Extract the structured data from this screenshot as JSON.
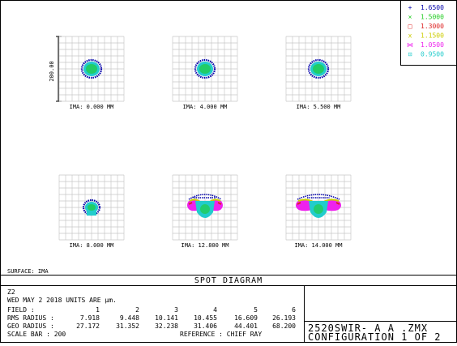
{
  "legend": [
    {
      "marker": "+",
      "label": "1.6500",
      "color": "#0000aa"
    },
    {
      "marker": "×",
      "label": "1.5000",
      "color": "#22cc22"
    },
    {
      "marker": "□",
      "label": "1.3000",
      "color": "#dd2222"
    },
    {
      "marker": "x",
      "label": "1.1500",
      "color": "#cccc00"
    },
    {
      "marker": "⋈",
      "label": "1.0500",
      "color": "#ee22ee"
    },
    {
      "marker": "⊡",
      "label": "0.9500",
      "color": "#22cccc"
    }
  ],
  "scale_bar_label": "200.00",
  "fields": [
    {
      "label": "IMA: 0.000 MM",
      "shape": "round"
    },
    {
      "label": "IMA: 4.000 MM",
      "shape": "round"
    },
    {
      "label": "IMA: 5.500 MM",
      "shape": "round"
    },
    {
      "label": "IMA: 8.000 MM",
      "shape": "round-small"
    },
    {
      "label": "IMA: 12.800 MM",
      "shape": "bowtie"
    },
    {
      "label": "IMA: 14.000 MM",
      "shape": "bowtie-wide"
    }
  ],
  "surface_label": "SURFACE: IMA",
  "title": "SPOT DIAGRAM",
  "info": {
    "line1": "Z2",
    "line2": "WED MAY 2 2018  UNITS ARE µm.",
    "field_label": "FIELD         :",
    "field_values": [
      "1",
      "2",
      "3",
      "4",
      "5",
      "6"
    ],
    "rms_label": "RMS RADIUS :",
    "rms_values": [
      "7.918",
      "9.448",
      "10.141",
      "10.455",
      "16.609",
      "26.193"
    ],
    "geo_label": "GEO RADIUS :",
    "geo_values": [
      "27.172",
      "31.352",
      "32.238",
      "31.406",
      "44.401",
      "68.200"
    ],
    "scale_bar_text": "SCALE BAR   :      200",
    "reference_text": "REFERENCE   : CHIEF RAY"
  },
  "file_box": {
    "line1": "2520SWIR- A  A  .ZMX",
    "line2": "CONFIGURATION 1 OF 2"
  }
}
